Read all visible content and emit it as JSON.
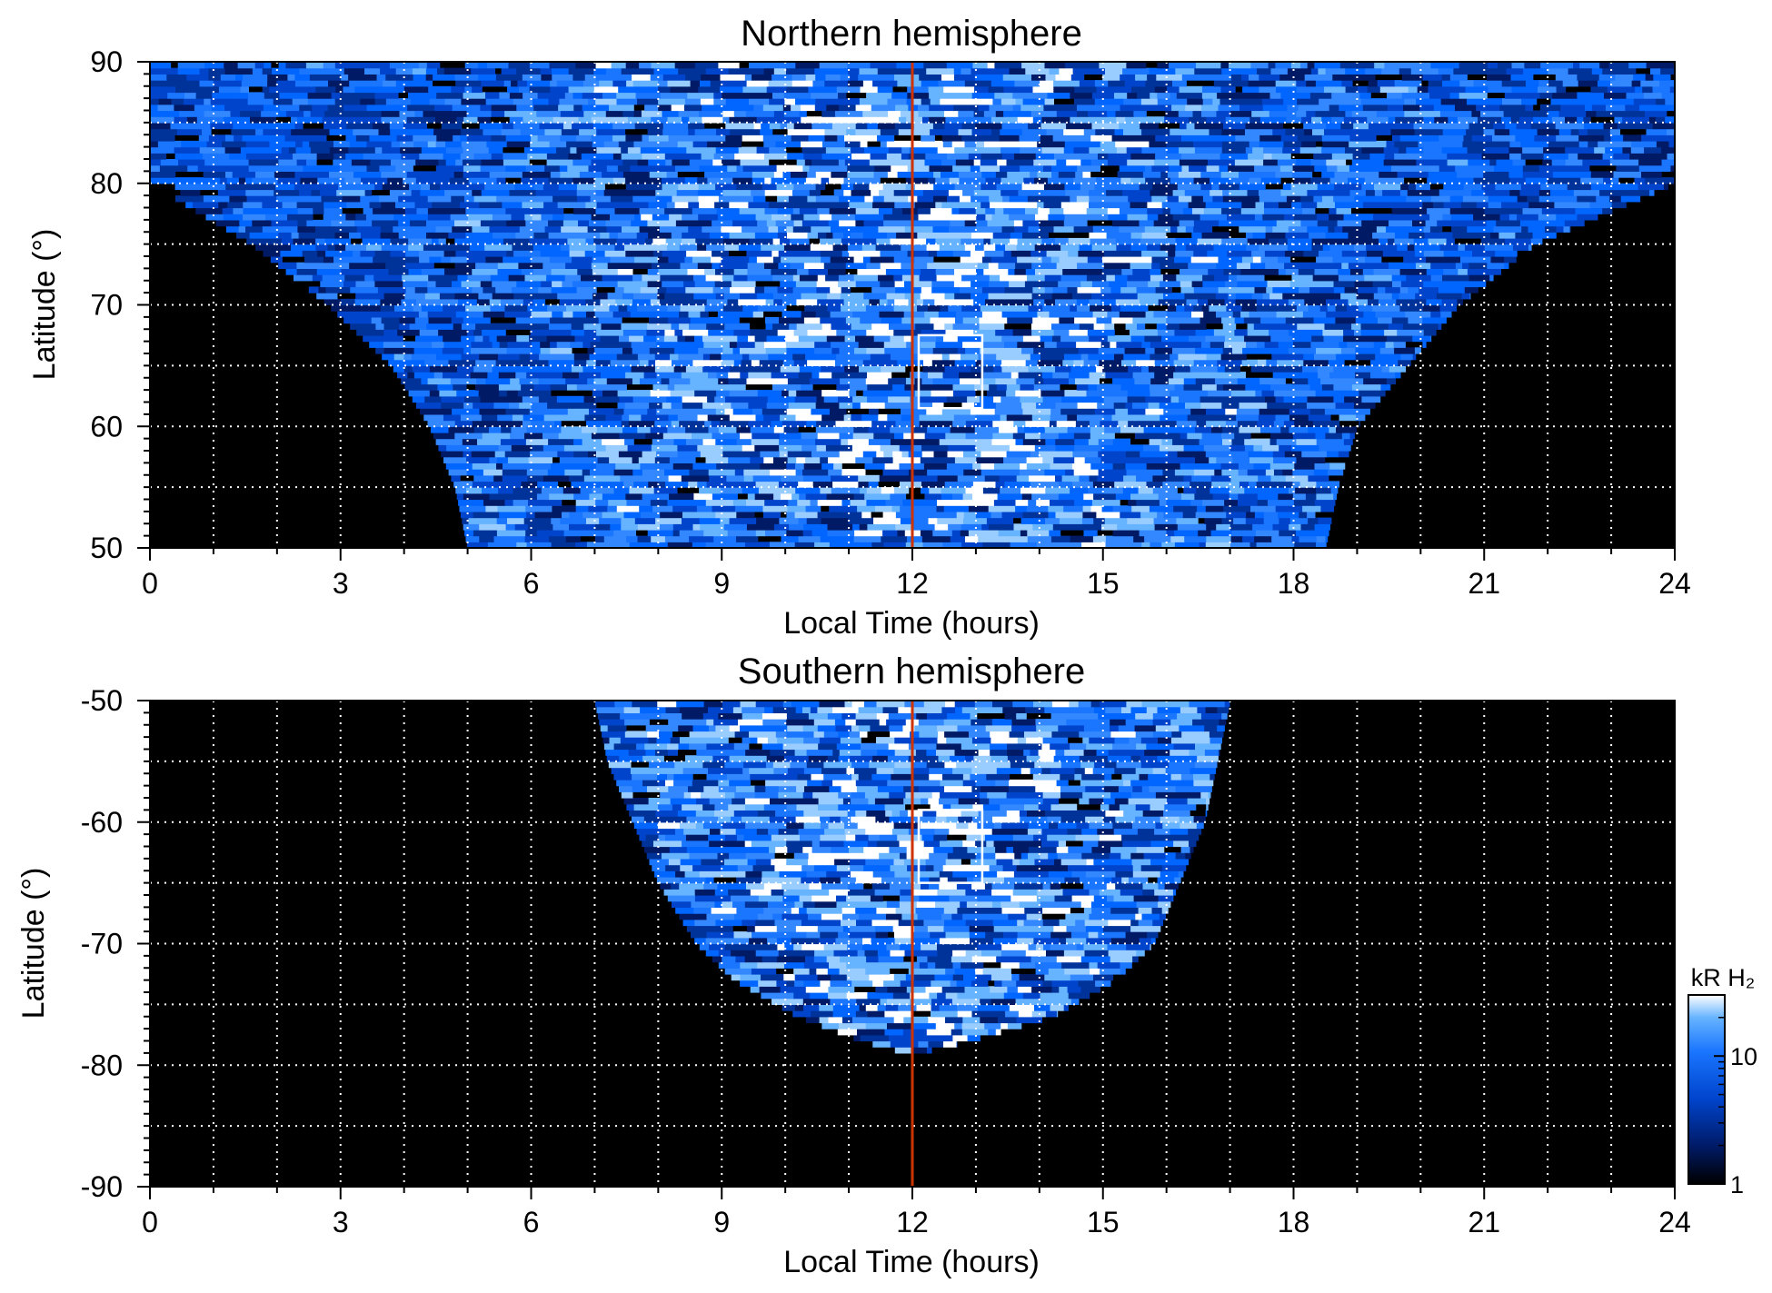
{
  "chart_data": [
    {
      "type": "heatmap",
      "title": "Northern hemisphere",
      "xlabel": "Local Time (hours)",
      "ylabel": "Latitude (°)",
      "xlim": [
        0,
        24
      ],
      "ylim": [
        50,
        90
      ],
      "xticks": [
        "0",
        "3",
        "6",
        "9",
        "12",
        "15",
        "18",
        "21",
        "24"
      ],
      "xtick_values": [
        0,
        3,
        6,
        9,
        12,
        15,
        18,
        21,
        24
      ],
      "yticks": [
        "50",
        "60",
        "70",
        "80",
        "90"
      ],
      "ytick_values": [
        50,
        60,
        70,
        80,
        90
      ],
      "grid": true,
      "grid_x_step": 1,
      "grid_y_step": 5,
      "noon_line_lt": 12,
      "noon_line_color": "#cc3300",
      "box": {
        "lt": [
          12.1,
          13.1
        ],
        "lat": [
          61.5,
          67.5
        ],
        "color": "#ffffff"
      },
      "coverage": [
        {
          "lat": 50,
          "lt": [
            5.0,
            18.5
          ]
        },
        {
          "lat": 55,
          "lt": [
            4.8,
            18.7
          ]
        },
        {
          "lat": 60,
          "lt": [
            4.4,
            19.0
          ]
        },
        {
          "lat": 65,
          "lt": [
            3.8,
            19.8
          ]
        },
        {
          "lat": 70,
          "lt": [
            2.8,
            20.6
          ]
        },
        {
          "lat": 75,
          "lt": [
            1.6,
            21.8
          ]
        },
        {
          "lat": 80,
          "lt": [
            0.0,
            24.0
          ]
        },
        {
          "lat": 90,
          "lt": [
            0.0,
            24.0
          ]
        }
      ]
    },
    {
      "type": "heatmap",
      "title": "Southern hemisphere",
      "xlabel": "Local Time (hours)",
      "ylabel": "Latitude (°)",
      "xlim": [
        0,
        24
      ],
      "ylim": [
        -90,
        -50
      ],
      "xticks": [
        "0",
        "3",
        "6",
        "9",
        "12",
        "15",
        "18",
        "21",
        "24"
      ],
      "xtick_values": [
        0,
        3,
        6,
        9,
        12,
        15,
        18,
        21,
        24
      ],
      "yticks": [
        "-50",
        "-60",
        "-70",
        "-80",
        "-90"
      ],
      "ytick_values": [
        -50,
        -60,
        -70,
        -80,
        -90
      ],
      "grid": true,
      "grid_x_step": 1,
      "grid_y_step": 5,
      "noon_line_lt": 12,
      "noon_line_color": "#cc3300",
      "box": {
        "lt": [
          12.1,
          13.1
        ],
        "lat": [
          -59,
          -65
        ],
        "color": "#ffffff"
      },
      "coverage": [
        {
          "lat": -50,
          "lt": [
            7.0,
            17.0
          ]
        },
        {
          "lat": -55,
          "lt": [
            7.2,
            16.8
          ]
        },
        {
          "lat": -60,
          "lt": [
            7.6,
            16.6
          ]
        },
        {
          "lat": -65,
          "lt": [
            8.0,
            16.2
          ]
        },
        {
          "lat": -70,
          "lt": [
            8.6,
            15.8
          ]
        },
        {
          "lat": -73,
          "lt": [
            9.2,
            15.2
          ]
        },
        {
          "lat": -76,
          "lt": [
            10.2,
            14.2
          ]
        },
        {
          "lat": -78,
          "lt": [
            11.2,
            12.9
          ]
        },
        {
          "lat": -79,
          "lt": [
            11.9,
            12.1
          ]
        }
      ]
    }
  ],
  "colorbar": {
    "label": "kR H₂",
    "ticks": [
      "10",
      "1"
    ],
    "tick_values": [
      10,
      1
    ],
    "range": [
      1,
      30
    ],
    "scale": "log",
    "colors": [
      "#000000",
      "#001a66",
      "#0044cc",
      "#1a75ff",
      "#66b3ff",
      "#ffffff"
    ]
  }
}
